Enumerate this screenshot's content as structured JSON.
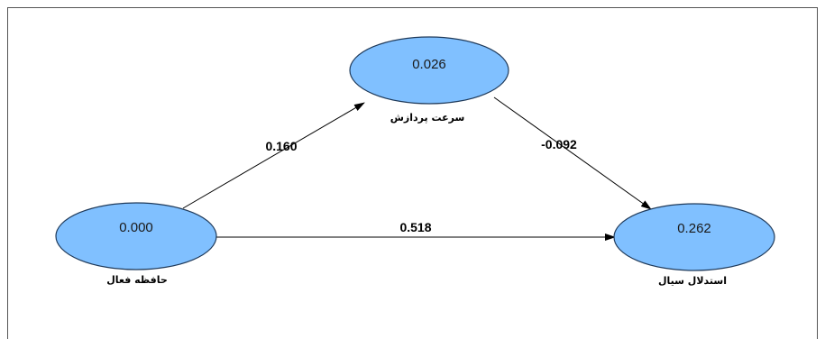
{
  "diagram": {
    "colors": {
      "node_fill": "#80C0FF",
      "node_stroke": "#1F3A5A",
      "edge": "#000000",
      "frame": "#555555"
    },
    "nodes": {
      "working_memory": {
        "value": "0.000",
        "label": "حافظه فعال"
      },
      "processing_speed": {
        "value": "0.026",
        "label": "سرعت پردازش"
      },
      "fluid_reasoning": {
        "value": "0.262",
        "label": "استدلال سیال"
      }
    },
    "edges": {
      "wm_to_ps": {
        "coefficient": "0.160"
      },
      "ps_to_fr": {
        "coefficient": "-0.092"
      },
      "wm_to_fr": {
        "coefficient": "0.518"
      }
    }
  }
}
